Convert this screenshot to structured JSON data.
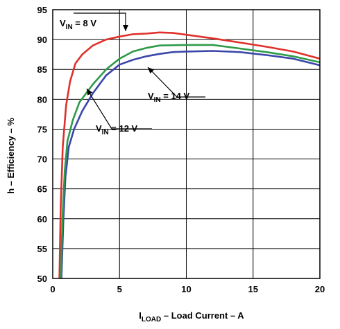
{
  "chart_data": {
    "type": "line",
    "xlabel": {
      "main": "I",
      "sub": "LOAD",
      "rest": " – Load Current – A"
    },
    "ylabel": "h – Efficiency – %",
    "xlim": [
      0,
      20
    ],
    "ylim": [
      50,
      95
    ],
    "xticks": [
      0,
      5,
      10,
      15,
      20
    ],
    "yticks": [
      50,
      55,
      60,
      65,
      70,
      75,
      80,
      85,
      90,
      95
    ],
    "grid": true,
    "series": [
      {
        "name": "VIN = 8 V",
        "label": {
          "main": "V",
          "sub": "IN",
          "rest": " = 8 V"
        },
        "color": "#e0302a",
        "points": [
          [
            0.5,
            50
          ],
          [
            0.6,
            62
          ],
          [
            0.75,
            72
          ],
          [
            1.0,
            79
          ],
          [
            1.3,
            83
          ],
          [
            1.7,
            86
          ],
          [
            2.2,
            87.5
          ],
          [
            3,
            89
          ],
          [
            4,
            90
          ],
          [
            5,
            90.5
          ],
          [
            6,
            90.9
          ],
          [
            7,
            91
          ],
          [
            8,
            91.2
          ],
          [
            9,
            91.1
          ],
          [
            10,
            90.8
          ],
          [
            12,
            90.2
          ],
          [
            14,
            89.5
          ],
          [
            16,
            88.8
          ],
          [
            18,
            88
          ],
          [
            20,
            86.8
          ]
        ]
      },
      {
        "name": "VIN = 12 V",
        "label": {
          "main": "V",
          "sub": "IN",
          "rest": " = 12 V"
        },
        "color": "#3a46a8",
        "points": [
          [
            0.65,
            50
          ],
          [
            0.8,
            60
          ],
          [
            0.95,
            67
          ],
          [
            1.2,
            72
          ],
          [
            1.6,
            75
          ],
          [
            2.2,
            78
          ],
          [
            3,
            81
          ],
          [
            4,
            84
          ],
          [
            5,
            85.8
          ],
          [
            6,
            86.6
          ],
          [
            7,
            87.2
          ],
          [
            8,
            87.6
          ],
          [
            9,
            87.9
          ],
          [
            10,
            88
          ],
          [
            12,
            88.1
          ],
          [
            14,
            87.9
          ],
          [
            16,
            87.4
          ],
          [
            18,
            86.8
          ],
          [
            20,
            85.7
          ]
        ]
      },
      {
        "name": "VIN = 14 V",
        "label": {
          "main": "V",
          "sub": "IN",
          "rest": " = 14 V"
        },
        "color": "#2e9a4a",
        "points": [
          [
            0.6,
            50
          ],
          [
            0.75,
            61
          ],
          [
            0.9,
            68
          ],
          [
            1.1,
            73
          ],
          [
            1.5,
            76.5
          ],
          [
            2,
            79.5
          ],
          [
            3,
            82.5
          ],
          [
            4,
            85
          ],
          [
            5,
            86.8
          ],
          [
            6,
            88
          ],
          [
            7,
            88.6
          ],
          [
            8,
            89
          ],
          [
            10,
            89.1
          ],
          [
            12,
            89.1
          ],
          [
            14,
            88.5
          ],
          [
            16,
            87.9
          ],
          [
            18,
            87.2
          ],
          [
            20,
            86.2
          ]
        ]
      }
    ]
  }
}
